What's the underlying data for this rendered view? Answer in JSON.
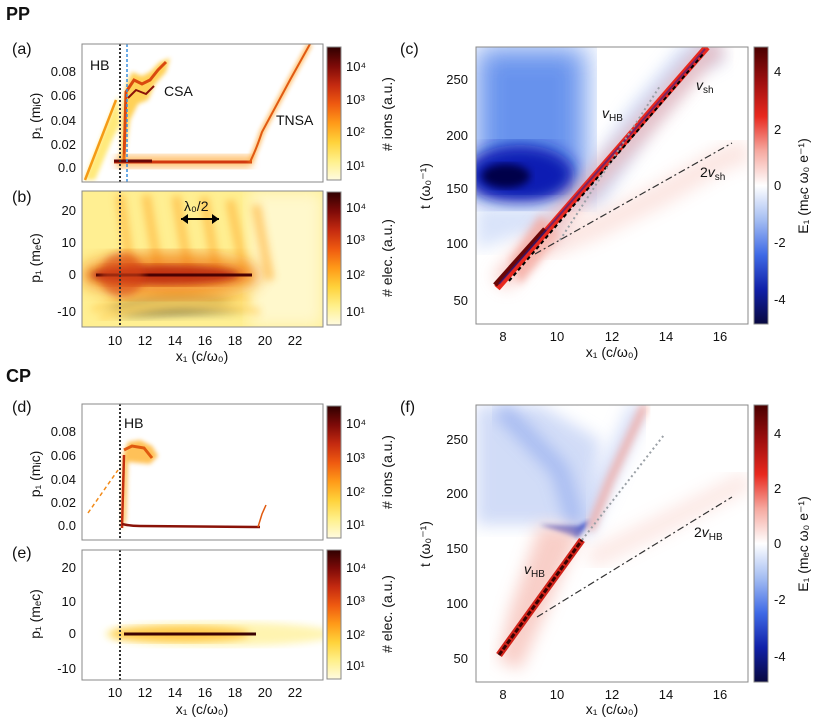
{
  "sections": [
    {
      "label": "PP"
    },
    {
      "label": "CP"
    }
  ],
  "colors": {
    "hot": [
      "#fffbe0",
      "#fff08a",
      "#ffd23a",
      "#ff9a18",
      "#ef5a10",
      "#c42a10",
      "#7d0a08",
      "#300000"
    ],
    "bwr": [
      "#08083f",
      "#1020a8",
      "#3f6ae6",
      "#a4bdf2",
      "#ffffff",
      "#f6a9a0",
      "#e8281e",
      "#9d0f0f",
      "#4a0000"
    ],
    "hb_line": "#333333",
    "blue_line": "#3a8fe0",
    "frame": "#888888"
  },
  "chart_data": [
    {
      "id": "a",
      "type": "heatmap",
      "panel_label": "(a)",
      "title": "",
      "xlabel": "",
      "ylabel": "p₁ (mᵢc)",
      "xlim": [
        8,
        24
      ],
      "ylim": [
        -0.01,
        0.1
      ],
      "xticks": [],
      "yticks": [
        "0.0",
        "0.02",
        "0.04",
        "0.06",
        "0.08"
      ],
      "colorbar": {
        "label": "# ions (a.u.)",
        "ticks": [
          "10¹",
          "10²",
          "10³",
          "10⁴"
        ]
      },
      "annotations": [
        "HB",
        "CSA",
        "TNSA"
      ],
      "vlines": [
        {
          "x": 10.5,
          "style": "dotted"
        },
        {
          "x": 10.9,
          "style": "dashed-blue"
        }
      ]
    },
    {
      "id": "b",
      "type": "heatmap",
      "panel_label": "(b)",
      "title": "",
      "xlabel": "x₁ (c/ω₀)",
      "ylabel": "p₁ (mₑc)",
      "xlim": [
        8,
        24
      ],
      "ylim": [
        -15,
        25
      ],
      "xticks": [
        "10",
        "12",
        "14",
        "16",
        "18",
        "20",
        "22"
      ],
      "yticks": [
        "-10",
        "0",
        "10",
        "20"
      ],
      "colorbar": {
        "label": "# elec. (a.u.)",
        "ticks": [
          "10¹",
          "10²",
          "10³",
          "10⁴"
        ]
      },
      "annotations": [
        "λ₀/2"
      ],
      "vlines": [
        {
          "x": 10.5,
          "style": "dotted"
        }
      ]
    },
    {
      "id": "c",
      "type": "heatmap",
      "panel_label": "(c)",
      "title": "",
      "xlabel": "x₁ (c/ω₀)",
      "ylabel": "t (ω₀⁻¹)",
      "xlim": [
        7,
        17
      ],
      "ylim": [
        35,
        285
      ],
      "xticks": [
        "8",
        "10",
        "12",
        "14",
        "16"
      ],
      "yticks": [
        "50",
        "100",
        "150",
        "200",
        "250"
      ],
      "colorbar": {
        "label": "E₁ (mₑc ω₀ e⁻¹)",
        "ticks": [
          "-4",
          "-2",
          "0",
          "2",
          "4"
        ],
        "range": [
          -5,
          5
        ]
      },
      "annotations": [
        "v_HB",
        "v_sh",
        "2v_sh"
      ]
    },
    {
      "id": "d",
      "type": "heatmap",
      "panel_label": "(d)",
      "title": "",
      "xlabel": "",
      "ylabel": "p₁ (mᵢc)",
      "xlim": [
        8,
        24
      ],
      "ylim": [
        -0.01,
        0.1
      ],
      "xticks": [],
      "yticks": [
        "0.0",
        "0.02",
        "0.04",
        "0.06",
        "0.08"
      ],
      "colorbar": {
        "label": "# ions (a.u.)",
        "ticks": [
          "10¹",
          "10²",
          "10³",
          "10⁴"
        ]
      },
      "annotations": [
        "HB"
      ],
      "vlines": [
        {
          "x": 10.5,
          "style": "dotted"
        }
      ]
    },
    {
      "id": "e",
      "type": "heatmap",
      "panel_label": "(e)",
      "title": "",
      "xlabel": "x₁ (c/ω₀)",
      "ylabel": "p₁ (mₑc)",
      "xlim": [
        8,
        24
      ],
      "ylim": [
        -15,
        25
      ],
      "xticks": [
        "10",
        "12",
        "14",
        "16",
        "18",
        "20",
        "22"
      ],
      "yticks": [
        "-10",
        "0",
        "10",
        "20"
      ],
      "colorbar": {
        "label": "# elec. (a.u.)",
        "ticks": [
          "10¹",
          "10²",
          "10³",
          "10⁴"
        ]
      },
      "annotations": [],
      "vlines": [
        {
          "x": 10.5,
          "style": "dotted"
        }
      ]
    },
    {
      "id": "f",
      "type": "heatmap",
      "panel_label": "(f)",
      "title": "",
      "xlabel": "x₁ (c/ω₀)",
      "ylabel": "t (ω₀⁻¹)",
      "xlim": [
        7,
        17
      ],
      "ylim": [
        35,
        285
      ],
      "xticks": [
        "8",
        "10",
        "12",
        "14",
        "16"
      ],
      "yticks": [
        "50",
        "100",
        "150",
        "200",
        "250"
      ],
      "colorbar": {
        "label": "E₁ (mₑc ω₀ e⁻¹)",
        "ticks": [
          "-4",
          "-2",
          "0",
          "2",
          "4"
        ],
        "range": [
          -5,
          5
        ]
      },
      "annotations": [
        "v_HB",
        "2v_HB"
      ]
    }
  ]
}
